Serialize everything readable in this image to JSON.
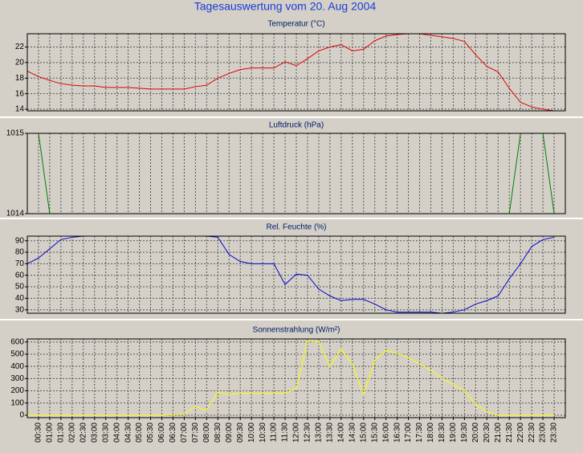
{
  "title": "Tagesauswertung vom 20. Aug 2004",
  "chart_data": [
    {
      "type": "line",
      "title": "Temperatur (°C)",
      "color": "#e00000",
      "ylim": [
        13.8,
        23.7
      ],
      "yticks": [
        14,
        16,
        18,
        20,
        22
      ],
      "grid": true,
      "values": [
        18.9,
        18.2,
        17.7,
        17.3,
        17.1,
        17.0,
        17.0,
        16.8,
        16.8,
        16.8,
        16.7,
        16.6,
        16.6,
        16.6,
        16.6,
        16.9,
        17.1,
        18.0,
        18.6,
        19.1,
        19.3,
        19.3,
        19.3,
        20.1,
        19.6,
        20.5,
        21.5,
        22.0,
        22.3,
        21.5,
        21.7,
        22.8,
        23.4,
        23.6,
        23.7,
        23.7,
        23.5,
        23.3,
        23.1,
        22.7,
        21.0,
        19.5,
        18.8,
        16.7,
        14.9,
        14.3,
        14.0,
        13.8
      ]
    },
    {
      "type": "line",
      "title": "Luftdruck (hPa)",
      "color": "#008000",
      "ylim": [
        1014,
        1015
      ],
      "yticks": [
        1014,
        1015
      ],
      "grid": true,
      "values": [
        1015,
        1015,
        1014,
        1014,
        1014,
        1014,
        1014,
        1014,
        1014,
        1014,
        1014,
        1014,
        1014,
        1014,
        1014,
        1014,
        1014,
        1014,
        1014,
        1014,
        1014,
        1014,
        1014,
        1014,
        1014,
        1014,
        1014,
        1014,
        1014,
        1014,
        1014,
        1014,
        1014,
        1014,
        1014,
        1014,
        1014,
        1014,
        1014,
        1014,
        1014,
        1014,
        1014,
        1014,
        1015,
        1015,
        1015,
        1014
      ]
    },
    {
      "type": "line",
      "title": "Rel. Feuchte (%)",
      "color": "#0000d0",
      "ylim": [
        27,
        94
      ],
      "yticks": [
        30,
        40,
        50,
        60,
        70,
        80,
        90
      ],
      "grid": true,
      "values": [
        70,
        75,
        83,
        91,
        93,
        94,
        94,
        94,
        94,
        94,
        94,
        94,
        94,
        94,
        94,
        94,
        94,
        93,
        78,
        72,
        70,
        70,
        70,
        52,
        61,
        60,
        48,
        42,
        38,
        39,
        39,
        35,
        30,
        28,
        28,
        28,
        28,
        27,
        28,
        30,
        35,
        38,
        42,
        57,
        70,
        85,
        91,
        93
      ]
    },
    {
      "type": "line",
      "title": "Sonnenstrahlung (W/m²)",
      "color": "#ffff00",
      "ylim": [
        -20,
        625
      ],
      "yticks": [
        0,
        100,
        200,
        300,
        400,
        500,
        600
      ],
      "grid": true,
      "values": [
        0,
        0,
        0,
        0,
        0,
        0,
        0,
        0,
        0,
        0,
        0,
        0,
        0,
        5,
        10,
        70,
        40,
        190,
        170,
        180,
        180,
        180,
        180,
        180,
        220,
        610,
        600,
        400,
        540,
        420,
        170,
        450,
        530,
        510,
        470,
        420,
        370,
        300,
        250,
        200,
        90,
        30,
        0,
        0,
        0,
        0,
        0,
        0
      ],
      "categories": [
        null,
        "00:30",
        "01:00",
        "01:30",
        "02:00",
        "02:30",
        "03:00",
        "03:30",
        "04:00",
        "04:30",
        "05:00",
        "05:30",
        "06:00",
        "06:30",
        "07:00",
        "07:30",
        "08:00",
        "08:30",
        "09:00",
        "09:30",
        "10:00",
        "10:30",
        "11:00",
        "11:30",
        "12:00",
        "12:30",
        "13:00",
        "13:30",
        "14:00",
        "14:30",
        "15:00",
        "15:30",
        "16:00",
        "16:30",
        "17:00",
        "17:30",
        "18:00",
        "18:30",
        "19:00",
        "19:30",
        "20:00",
        "20:30",
        "21:00",
        "21:30",
        "22:00",
        "22:30",
        "23:00",
        "23:30"
      ]
    }
  ]
}
